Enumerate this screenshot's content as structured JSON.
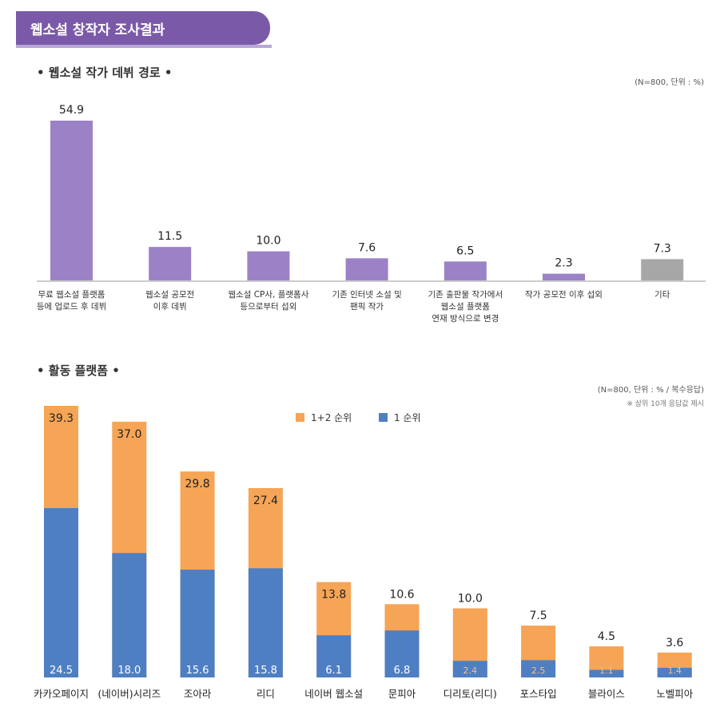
{
  "header": {
    "title": "웹소설 창작자 조사결과"
  },
  "colors": {
    "banner": "#7a5aa8",
    "purple": "#9b82c6",
    "gray": "#a7a7a7",
    "orange": "#f6a455",
    "blue": "#4f7fc3"
  },
  "section1": {
    "title": "• 웹소설 작가 데뷔 경로 •",
    "note": "(N=800, 단위 : %)"
  },
  "section2": {
    "title": "• 활동 플랫폼 •",
    "note": "(N=800, 단위 : % / 복수응답)",
    "note2": "※ 상위 10개 응답값 제시"
  },
  "chart_data": [
    {
      "type": "bar",
      "title": "웹소설 작가 데뷔 경로",
      "categories": [
        "무료 웹소설 플랫폼\n등에 업로드 후 데뷔",
        "웹소설 공모전\n이후 데뷔",
        "웹소설 CP사, 플랫폼사\n등으로부터 섭외",
        "기존 인터넷 소설 및\n팬픽 작가",
        "기존 출판물 작가에서\n웹소설 플랫폼\n연재 방식으로 변경",
        "작가 공모전 이후 섭외",
        "기타"
      ],
      "values": [
        54.9,
        11.5,
        10.0,
        7.6,
        6.5,
        2.3,
        7.3
      ],
      "labels": [
        "54.9",
        "11.5",
        "10.0",
        "7.6",
        "6.5",
        "2.3",
        "7.3"
      ],
      "ylim": [
        0,
        60
      ]
    },
    {
      "type": "bar",
      "title": "활동 플랫폼",
      "categories": [
        "카카오페이지",
        "(네이버)시리즈",
        "조아라",
        "리디",
        "네이버 웹소설",
        "문피아",
        "디리토(리디)",
        "포스타입",
        "블라이스",
        "노벨피아"
      ],
      "series": [
        {
          "name": "1+2 순위",
          "values": [
            39.3,
            37.0,
            29.8,
            27.4,
            13.8,
            10.6,
            10.0,
            7.5,
            4.5,
            3.6
          ],
          "labels": [
            "39.3",
            "37.0",
            "29.8",
            "27.4",
            "13.8",
            "10.6",
            "10.0",
            "7.5",
            "4.5",
            "3.6"
          ]
        },
        {
          "name": "1 순위",
          "values": [
            24.5,
            18.0,
            15.6,
            15.8,
            6.1,
            6.8,
            2.4,
            2.5,
            1.1,
            1.4
          ],
          "labels": [
            "24.5",
            "18.0",
            "15.6",
            "15.8",
            "6.1",
            "6.8",
            "2.4",
            "2.5",
            "1.1",
            "1.4"
          ]
        }
      ],
      "legend": [
        "1+2 순위",
        "1 순위"
      ],
      "ylim": [
        0,
        40
      ]
    }
  ]
}
